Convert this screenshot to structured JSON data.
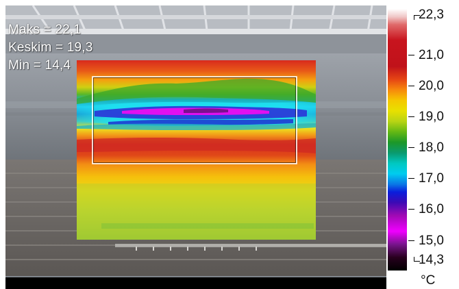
{
  "measurement": {
    "max_label": "Maks = 22,1",
    "avg_label": "Keskim = 19,3",
    "min_label": "Min = 14,4"
  },
  "scale": {
    "ticks": [
      "22,3",
      "21,0",
      "20,0",
      "19,0",
      "18,0",
      "17,0",
      "16,0",
      "15,0",
      "14,3"
    ],
    "unit": "°C",
    "max": 22.3,
    "min": 14.3
  },
  "palette": {
    "hot": "#c8141e",
    "warm": "#f5c800",
    "mid": "#1c9828",
    "cool": "#00ccf0",
    "cold": "#f000ff",
    "coldest": "#000000"
  }
}
